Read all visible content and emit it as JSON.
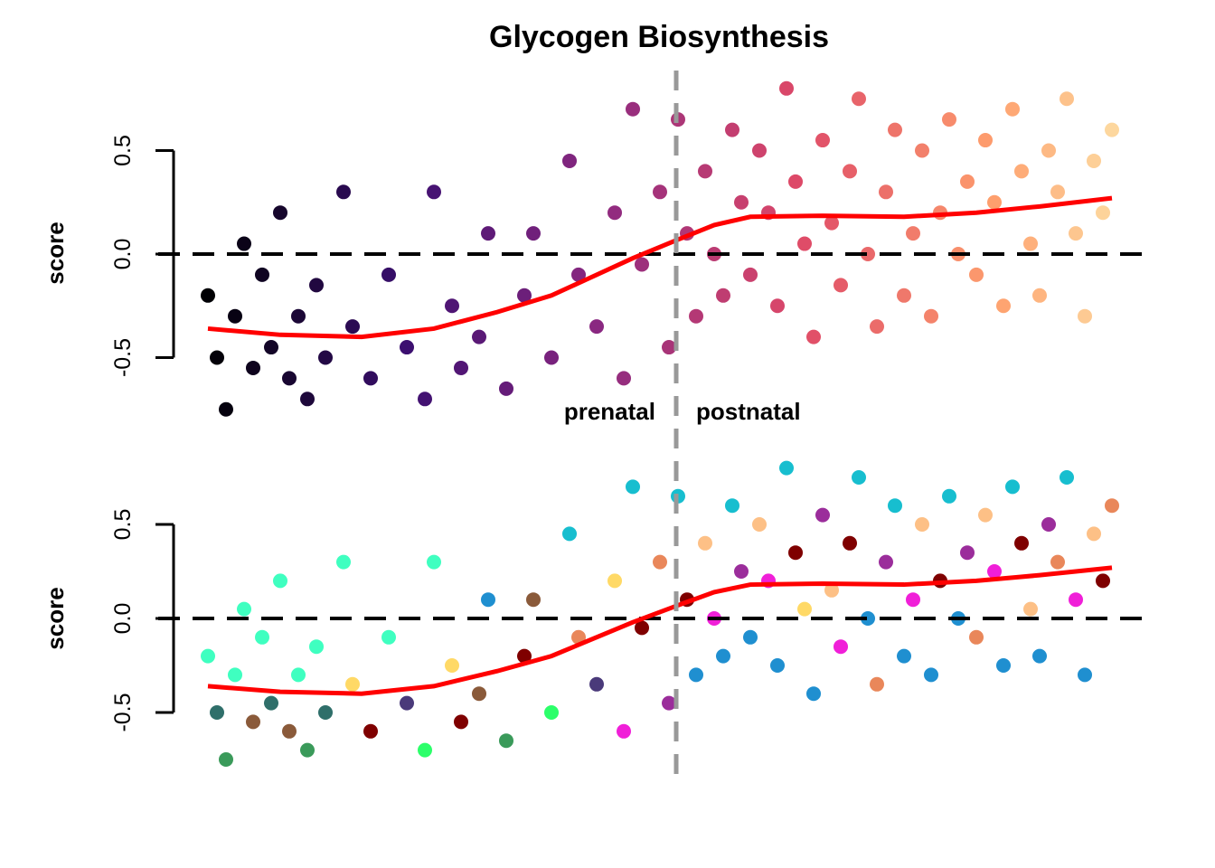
{
  "chart_data": [
    {
      "type": "scatter",
      "title": "Glycogen Biosynthesis",
      "ylabel": "score",
      "yticks": [
        "-0.5",
        "0.0",
        "0.5"
      ],
      "ytick_values": [
        -0.5,
        0.0,
        0.5
      ],
      "xlim": [
        0,
        100
      ],
      "ylim": [
        -0.8,
        0.85
      ],
      "reference_line_y": 0.0,
      "divider_x": 51.8,
      "annotations": {
        "left": "prenatal",
        "right": "postnatal"
      },
      "color_scale": "magma, by x order",
      "trend_color": "#ff0000",
      "trend": [
        [
          0,
          -0.36
        ],
        [
          8,
          -0.39
        ],
        [
          17,
          -0.4
        ],
        [
          25,
          -0.36
        ],
        [
          32,
          -0.28
        ],
        [
          38,
          -0.2
        ],
        [
          42,
          -0.12
        ],
        [
          47,
          -0.02
        ],
        [
          52,
          0.07
        ],
        [
          56,
          0.14
        ],
        [
          60,
          0.18
        ],
        [
          68,
          0.185
        ],
        [
          77,
          0.18
        ],
        [
          85,
          0.2
        ],
        [
          92,
          0.23
        ],
        [
          100,
          0.27
        ]
      ],
      "points": [
        [
          0,
          -0.2
        ],
        [
          1,
          -0.5
        ],
        [
          2,
          -0.75
        ],
        [
          3,
          -0.3
        ],
        [
          4,
          0.05
        ],
        [
          5,
          -0.55
        ],
        [
          6,
          -0.1
        ],
        [
          7,
          -0.45
        ],
        [
          8,
          0.2
        ],
        [
          9,
          -0.6
        ],
        [
          10,
          -0.3
        ],
        [
          11,
          -0.7
        ],
        [
          12,
          -0.15
        ],
        [
          13,
          -0.5
        ],
        [
          15,
          0.3
        ],
        [
          16,
          -0.35
        ],
        [
          18,
          -0.6
        ],
        [
          20,
          -0.1
        ],
        [
          22,
          -0.45
        ],
        [
          24,
          -0.7
        ],
        [
          25,
          0.3
        ],
        [
          27,
          -0.25
        ],
        [
          28,
          -0.55
        ],
        [
          30,
          -0.4
        ],
        [
          31,
          0.1
        ],
        [
          33,
          -0.65
        ],
        [
          35,
          -0.2
        ],
        [
          36,
          0.1
        ],
        [
          38,
          -0.5
        ],
        [
          40,
          0.45
        ],
        [
          41,
          -0.1
        ],
        [
          43,
          -0.35
        ],
        [
          45,
          0.2
        ],
        [
          46,
          -0.6
        ],
        [
          47,
          0.7
        ],
        [
          48,
          -0.05
        ],
        [
          50,
          0.3
        ],
        [
          51,
          -0.45
        ],
        [
          52,
          0.65
        ],
        [
          53,
          0.1
        ],
        [
          54,
          -0.3
        ],
        [
          55,
          0.4
        ],
        [
          56,
          0.0
        ],
        [
          57,
          -0.2
        ],
        [
          58,
          0.6
        ],
        [
          59,
          0.25
        ],
        [
          60,
          -0.1
        ],
        [
          61,
          0.5
        ],
        [
          62,
          0.2
        ],
        [
          63,
          -0.25
        ],
        [
          64,
          0.8
        ],
        [
          65,
          0.35
        ],
        [
          66,
          0.05
        ],
        [
          67,
          -0.4
        ],
        [
          68,
          0.55
        ],
        [
          69,
          0.15
        ],
        [
          70,
          -0.15
        ],
        [
          71,
          0.4
        ],
        [
          72,
          0.75
        ],
        [
          73,
          0.0
        ],
        [
          74,
          -0.35
        ],
        [
          75,
          0.3
        ],
        [
          76,
          0.6
        ],
        [
          77,
          -0.2
        ],
        [
          78,
          0.1
        ],
        [
          79,
          0.5
        ],
        [
          80,
          -0.3
        ],
        [
          81,
          0.2
        ],
        [
          82,
          0.65
        ],
        [
          83,
          0.0
        ],
        [
          84,
          0.35
        ],
        [
          85,
          -0.1
        ],
        [
          86,
          0.55
        ],
        [
          87,
          0.25
        ],
        [
          88,
          -0.25
        ],
        [
          89,
          0.7
        ],
        [
          90,
          0.4
        ],
        [
          91,
          0.05
        ],
        [
          92,
          -0.2
        ],
        [
          93,
          0.5
        ],
        [
          94,
          0.3
        ],
        [
          95,
          0.75
        ],
        [
          96,
          0.1
        ],
        [
          97,
          -0.3
        ],
        [
          98,
          0.45
        ],
        [
          99,
          0.2
        ],
        [
          100,
          0.6
        ]
      ]
    },
    {
      "type": "scatter",
      "ylabel": "score",
      "yticks": [
        "-0.5",
        "0.0",
        "0.5"
      ],
      "ytick_values": [
        -0.5,
        0.0,
        0.5
      ],
      "xlim": [
        0,
        100
      ],
      "ylim": [
        -0.8,
        0.85
      ],
      "reference_line_y": 0.0,
      "divider_x": 51.8,
      "trend_color": "#ff0000",
      "palette": [
        "#17becf",
        "#7f0000",
        "#fdc086",
        "#f01fd8",
        "#9b2d9b",
        "#1f8fd0",
        "#2f6f6a",
        "#3fffc0",
        "#2cff6a",
        "#ffd966",
        "#e9875a",
        "#4a3a7a",
        "#3a9a5a",
        "#8a5a3a"
      ],
      "trend": [
        [
          0,
          -0.36
        ],
        [
          8,
          -0.39
        ],
        [
          17,
          -0.4
        ],
        [
          25,
          -0.36
        ],
        [
          32,
          -0.28
        ],
        [
          38,
          -0.2
        ],
        [
          42,
          -0.12
        ],
        [
          47,
          -0.02
        ],
        [
          52,
          0.07
        ],
        [
          56,
          0.14
        ],
        [
          60,
          0.18
        ],
        [
          68,
          0.185
        ],
        [
          77,
          0.18
        ],
        [
          85,
          0.2
        ],
        [
          92,
          0.23
        ],
        [
          100,
          0.27
        ]
      ],
      "points": [
        [
          0,
          -0.2,
          7
        ],
        [
          1,
          -0.5,
          6
        ],
        [
          2,
          -0.75,
          12
        ],
        [
          3,
          -0.3,
          7
        ],
        [
          4,
          0.05,
          7
        ],
        [
          5,
          -0.55,
          13
        ],
        [
          6,
          -0.1,
          7
        ],
        [
          7,
          -0.45,
          6
        ],
        [
          8,
          0.2,
          7
        ],
        [
          9,
          -0.6,
          13
        ],
        [
          10,
          -0.3,
          7
        ],
        [
          11,
          -0.7,
          12
        ],
        [
          12,
          -0.15,
          7
        ],
        [
          13,
          -0.5,
          6
        ],
        [
          15,
          0.3,
          7
        ],
        [
          16,
          -0.35,
          9
        ],
        [
          18,
          -0.6,
          1
        ],
        [
          20,
          -0.1,
          7
        ],
        [
          22,
          -0.45,
          11
        ],
        [
          24,
          -0.7,
          8
        ],
        [
          25,
          0.3,
          7
        ],
        [
          27,
          -0.25,
          9
        ],
        [
          28,
          -0.55,
          1
        ],
        [
          30,
          -0.4,
          13
        ],
        [
          31,
          0.1,
          5
        ],
        [
          33,
          -0.65,
          12
        ],
        [
          35,
          -0.2,
          1
        ],
        [
          36,
          0.1,
          13
        ],
        [
          38,
          -0.5,
          8
        ],
        [
          40,
          0.45,
          0
        ],
        [
          41,
          -0.1,
          10
        ],
        [
          43,
          -0.35,
          11
        ],
        [
          45,
          0.2,
          9
        ],
        [
          46,
          -0.6,
          3
        ],
        [
          47,
          0.7,
          0
        ],
        [
          48,
          -0.05,
          1
        ],
        [
          50,
          0.3,
          10
        ],
        [
          51,
          -0.45,
          4
        ],
        [
          52,
          0.65,
          0
        ],
        [
          53,
          0.1,
          1
        ],
        [
          54,
          -0.3,
          5
        ],
        [
          55,
          0.4,
          2
        ],
        [
          56,
          0.0,
          3
        ],
        [
          57,
          -0.2,
          5
        ],
        [
          58,
          0.6,
          0
        ],
        [
          59,
          0.25,
          4
        ],
        [
          60,
          -0.1,
          5
        ],
        [
          61,
          0.5,
          2
        ],
        [
          62,
          0.2,
          3
        ],
        [
          63,
          -0.25,
          5
        ],
        [
          64,
          0.8,
          0
        ],
        [
          65,
          0.35,
          1
        ],
        [
          66,
          0.05,
          9
        ],
        [
          67,
          -0.4,
          5
        ],
        [
          68,
          0.55,
          4
        ],
        [
          69,
          0.15,
          2
        ],
        [
          70,
          -0.15,
          3
        ],
        [
          71,
          0.4,
          1
        ],
        [
          72,
          0.75,
          0
        ],
        [
          73,
          0.0,
          5
        ],
        [
          74,
          -0.35,
          10
        ],
        [
          75,
          0.3,
          4
        ],
        [
          76,
          0.6,
          0
        ],
        [
          77,
          -0.2,
          5
        ],
        [
          78,
          0.1,
          3
        ],
        [
          79,
          0.5,
          2
        ],
        [
          80,
          -0.3,
          5
        ],
        [
          81,
          0.2,
          1
        ],
        [
          82,
          0.65,
          0
        ],
        [
          83,
          0.0,
          5
        ],
        [
          84,
          0.35,
          4
        ],
        [
          85,
          -0.1,
          10
        ],
        [
          86,
          0.55,
          2
        ],
        [
          87,
          0.25,
          3
        ],
        [
          88,
          -0.25,
          5
        ],
        [
          89,
          0.7,
          0
        ],
        [
          90,
          0.4,
          1
        ],
        [
          91,
          0.05,
          2
        ],
        [
          92,
          -0.2,
          5
        ],
        [
          93,
          0.5,
          4
        ],
        [
          94,
          0.3,
          10
        ],
        [
          95,
          0.75,
          0
        ],
        [
          96,
          0.1,
          3
        ],
        [
          97,
          -0.3,
          5
        ],
        [
          98,
          0.45,
          2
        ],
        [
          99,
          0.2,
          1
        ],
        [
          100,
          0.6,
          10
        ]
      ]
    }
  ]
}
